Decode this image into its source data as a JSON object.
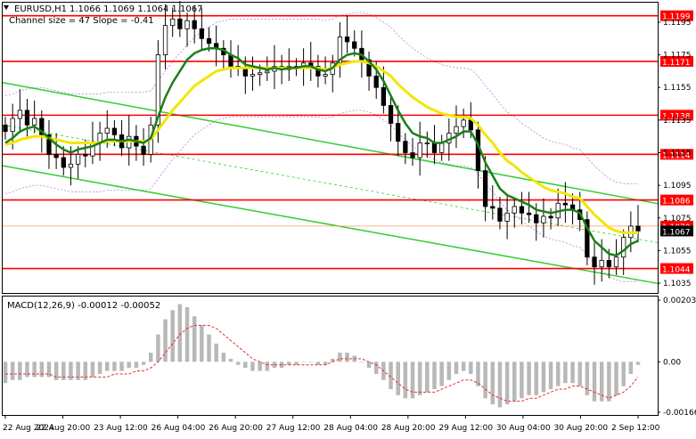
{
  "chart_data": {
    "type": "candlestick",
    "symbol_header": "EURUSD,H1",
    "ohlc_header": "1.1066 1.1069 1.1064 1.1067",
    "channel_info": "Channel size = 47 Slope = -0.41",
    "price_axis": {
      "ticks": [
        "1.1195",
        "1.1175",
        "1.1155",
        "1.1135",
        "1.1115",
        "1.1095",
        "1.1075",
        "1.1055",
        "1.1035"
      ],
      "range": [
        1.1029,
        1.1207
      ]
    },
    "time_axis": {
      "labels": [
        "22 Aug 2024",
        "22 Aug 20:00",
        "23 Aug 12:00",
        "26 Aug 04:00",
        "26 Aug 20:00",
        "27 Aug 12:00",
        "28 Aug 04:00",
        "28 Aug 20:00",
        "29 Aug 12:00",
        "30 Aug 04:00",
        "30 Aug 20:00",
        "2 Sep 12:00"
      ]
    },
    "levels": [
      {
        "label": "1.1199",
        "value": 1.1199
      },
      {
        "label": "1.1171",
        "value": 1.1171
      },
      {
        "label": "1.1138",
        "value": 1.1138
      },
      {
        "label": "1.1114",
        "value": 1.1114
      },
      {
        "label": "1.1086",
        "value": 1.1086
      },
      {
        "label": "1.1044",
        "value": 1.1044
      }
    ],
    "current_price": {
      "label": "1.1067",
      "value": 1.1067
    },
    "reference_price": {
      "label": "1.1070",
      "value": 1.107
    },
    "closes": [
      1.1128,
      1.1136,
      1.1141,
      1.1132,
      1.1136,
      1.1126,
      1.1114,
      1.1112,
      1.1106,
      1.1108,
      1.1114,
      1.1113,
      1.1121,
      1.1127,
      1.113,
      1.1126,
      1.1118,
      1.1125,
      1.1119,
      1.1114,
      1.1132,
      1.1175,
      1.1193,
      1.1197,
      1.1191,
      1.1196,
      1.1191,
      1.1185,
      1.1182,
      1.1179,
      1.1175,
      1.1168,
      1.1167,
      1.1162,
      1.1163,
      1.1164,
      1.1165,
      1.1168,
      1.1166,
      1.1168,
      1.1167,
      1.117,
      1.1168,
      1.1162,
      1.1163,
      1.117,
      1.1186,
      1.1183,
      1.1179,
      1.1172,
      1.1162,
      1.1155,
      1.1144,
      1.1133,
      1.1122,
      1.1115,
      1.1112,
      1.1121,
      1.1121,
      1.1115,
      1.1121,
      1.1127,
      1.1131,
      1.1135,
      1.1129,
      1.1104,
      1.1082,
      1.1081,
      1.1073,
      1.1078,
      1.1082,
      1.1078,
      1.1077,
      1.1072,
      1.1076,
      1.1075,
      1.1084,
      1.1083,
      1.108,
      1.1074,
      1.1051,
      1.1045,
      1.1049,
      1.1045,
      1.1051,
      1.1063,
      1.107,
      1.1067
    ],
    "ma_fast": [
      1.1121,
      1.1124,
      1.1128,
      1.113,
      1.1131,
      1.1128,
      1.1124,
      1.112,
      1.1117,
      1.1115,
      1.1117,
      1.1118,
      1.1119,
      1.1121,
      1.1123,
      1.1123,
      1.1122,
      1.1123,
      1.1122,
      1.1121,
      1.1124,
      1.1137,
      1.1149,
      1.1158,
      1.1165,
      1.1172,
      1.1176,
      1.1178,
      1.1179,
      1.1179,
      1.1178,
      1.1175,
      1.1173,
      1.1169,
      1.1168,
      1.1167,
      1.1166,
      1.1167,
      1.1166,
      1.1167,
      1.1167,
      1.1168,
      1.1168,
      1.1166,
      1.1165,
      1.1167,
      1.1172,
      1.1175,
      1.1176,
      1.1175,
      1.1171,
      1.1166,
      1.1159,
      1.115,
      1.1141,
      1.1133,
      1.1127,
      1.1125,
      1.1124,
      1.1121,
      1.1121,
      1.1123,
      1.1125,
      1.1128,
      1.1128,
      1.112,
      1.1109,
      1.1101,
      1.1093,
      1.1089,
      1.1087,
      1.1085,
      1.1083,
      1.108,
      1.1079,
      1.1078,
      1.1079,
      1.108,
      1.108,
      1.1078,
      1.1069,
      1.1061,
      1.1057,
      1.1053,
      1.1052,
      1.1055,
      1.1059,
      1.1061
    ],
    "ma_slow": [
      1.112,
      1.1121,
      1.1123,
      1.1124,
      1.1125,
      1.1125,
      1.1124,
      1.1123,
      1.1122,
      1.1121,
      1.1121,
      1.1121,
      1.1121,
      1.1121,
      1.1122,
      1.1122,
      1.1122,
      1.1122,
      1.1122,
      1.1122,
      1.1123,
      1.1129,
      1.1135,
      1.1141,
      1.1146,
      1.1151,
      1.1156,
      1.1159,
      1.1162,
      1.1165,
      1.1166,
      1.1167,
      1.1167,
      1.1167,
      1.1167,
      1.1167,
      1.1167,
      1.1167,
      1.1167,
      1.1167,
      1.1167,
      1.1167,
      1.1167,
      1.1167,
      1.1166,
      1.1167,
      1.1169,
      1.117,
      1.1171,
      1.1171,
      1.117,
      1.1168,
      1.1165,
      1.1162,
      1.1157,
      1.1153,
      1.1149,
      1.1146,
      1.1143,
      1.1141,
      1.1139,
      1.1138,
      1.1137,
      1.1137,
      1.1136,
      1.1132,
      1.1126,
      1.1121,
      1.1115,
      1.111,
      1.1107,
      1.1103,
      1.11,
      1.1097,
      1.1094,
      1.1092,
      1.1091,
      1.109,
      1.1088,
      1.1087,
      1.1082,
      1.1077,
      1.1073,
      1.1069,
      1.1067,
      1.1066,
      1.1066,
      1.1066
    ],
    "channel": {
      "upper": [
        [
          1.1158,
          0
        ],
        [
          1.1086,
          87
        ]
      ],
      "lower": [
        [
          1.1107,
          0
        ],
        [
          1.1037,
          87
        ]
      ],
      "middle": [
        [
          1.1132,
          0
        ],
        [
          1.1062,
          87
        ]
      ]
    },
    "macd": {
      "header": "MACD(12,26,9) -0.00012 -0.00052",
      "ticks": [
        "0.00203",
        "0.00",
        "-0.00166"
      ],
      "range": [
        -0.00175,
        0.00215
      ],
      "histogram": [
        -0.0007,
        -0.0006,
        -0.0006,
        -0.0005,
        -0.0005,
        -0.0005,
        -0.0005,
        -0.0006,
        -0.0006,
        -0.0006,
        -0.0006,
        -0.0006,
        -0.0005,
        -0.0004,
        -0.0003,
        -0.0003,
        -0.0003,
        -0.0002,
        -0.0002,
        -0.0001,
        0.0003,
        0.0009,
        0.0014,
        0.0017,
        0.0019,
        0.0018,
        0.0015,
        0.0012,
        0.0009,
        0.0006,
        0.0003,
        0.0001,
        -0.0001,
        -0.0002,
        -0.0003,
        -0.0003,
        -0.0003,
        -0.0002,
        -0.0002,
        -0.0001,
        -0.0001,
        0.0,
        0.0,
        -0.0001,
        -0.0001,
        0.0001,
        0.0003,
        0.0003,
        0.0002,
        0.0,
        -0.0002,
        -0.0004,
        -0.0006,
        -0.0009,
        -0.0011,
        -0.0012,
        -0.0012,
        -0.0011,
        -0.001,
        -0.0009,
        -0.0008,
        -0.0006,
        -0.0004,
        -0.0003,
        -0.0004,
        -0.0008,
        -0.0012,
        -0.0014,
        -0.0015,
        -0.0014,
        -0.0013,
        -0.0012,
        -0.0011,
        -0.0011,
        -0.001,
        -0.0009,
        -0.0008,
        -0.0007,
        -0.0007,
        -0.0008,
        -0.0011,
        -0.0013,
        -0.0013,
        -0.0013,
        -0.0011,
        -0.0008,
        -0.0004,
        -0.0001
      ],
      "signal": [
        -0.0004,
        -0.0004,
        -0.0004,
        -0.0004,
        -0.0004,
        -0.0004,
        -0.0004,
        -0.0005,
        -0.0005,
        -0.0005,
        -0.0005,
        -0.0005,
        -0.0005,
        -0.0005,
        -0.0005,
        -0.0004,
        -0.0004,
        -0.0004,
        -0.0003,
        -0.0003,
        -0.0002,
        0.0,
        0.0003,
        0.0006,
        0.0009,
        0.0011,
        0.0012,
        0.0012,
        0.0012,
        0.0011,
        0.0009,
        0.0007,
        0.0005,
        0.0003,
        0.0001,
        0.0,
        -0.0001,
        -0.0001,
        -0.0001,
        -0.0001,
        -0.0001,
        -0.0001,
        -0.0001,
        -0.0001,
        -0.0001,
        0.0,
        0.0001,
        0.0001,
        0.0001,
        0.0001,
        0.0,
        -0.0001,
        -0.0003,
        -0.0005,
        -0.0007,
        -0.0009,
        -0.001,
        -0.001,
        -0.001,
        -0.001,
        -0.0009,
        -0.0008,
        -0.0007,
        -0.0006,
        -0.0006,
        -0.0007,
        -0.0009,
        -0.0011,
        -0.0012,
        -0.0013,
        -0.0013,
        -0.0013,
        -0.0012,
        -0.0012,
        -0.0011,
        -0.001,
        -0.0009,
        -0.0009,
        -0.0008,
        -0.0008,
        -0.0009,
        -0.001,
        -0.0011,
        -0.0012,
        -0.0011,
        -0.001,
        -0.0008,
        -0.0005
      ]
    }
  },
  "colors": {
    "level_line": "#ff0000",
    "level_label_bg": "#ff0000",
    "current_label_bg": "#000000",
    "bull": "#000000",
    "bear": "#000000",
    "ma_fast": "#1a7f1a",
    "ma_slow": "#f2e600",
    "channel": "#32cd32",
    "envelope": "#c080d8",
    "macd_hist": "#b8b8b8",
    "macd_signal": "#e03030"
  }
}
